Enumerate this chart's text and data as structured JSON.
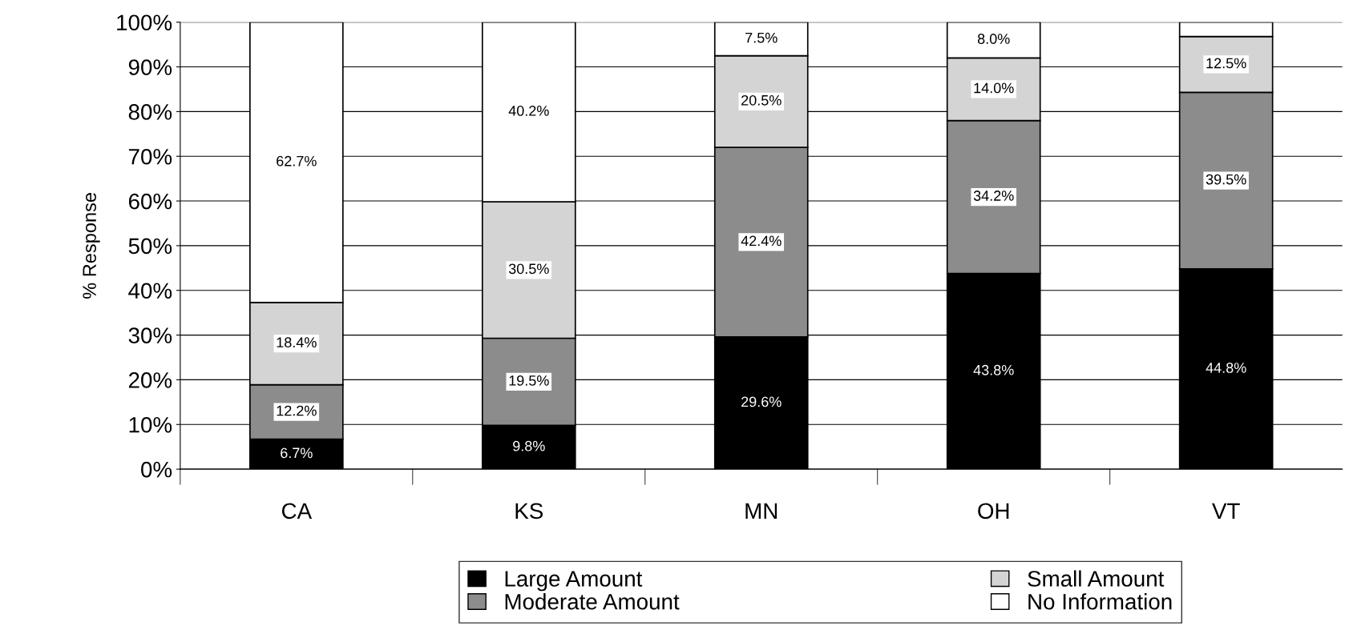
{
  "chart_data": {
    "type": "bar",
    "stacked": true,
    "ylabel": "% Response",
    "categories": [
      "CA",
      "KS",
      "MN",
      "OH",
      "VT"
    ],
    "series": [
      {
        "name": "Large Amount",
        "color": "#000000",
        "values": [
          6.7,
          9.8,
          29.6,
          43.8,
          44.8
        ],
        "value_labels": [
          "6.7%",
          "9.8%",
          "29.6%",
          "43.8%",
          "44.8%"
        ]
      },
      {
        "name": "Moderate Amount",
        "color": "#8c8c8c",
        "values": [
          12.2,
          19.5,
          42.4,
          34.2,
          39.5
        ],
        "value_labels": [
          "12.2%",
          "19.5%",
          "42.4%",
          "34.2%",
          "39.5%"
        ]
      },
      {
        "name": "Small Amount",
        "color": "#d4d4d4",
        "values": [
          18.4,
          30.5,
          20.5,
          14.0,
          12.5
        ],
        "value_labels": [
          "18.4%",
          "30.5%",
          "20.5%",
          "14.0%",
          "12.5%"
        ]
      },
      {
        "name": "No Information",
        "color": "#ffffff",
        "values": [
          62.7,
          40.2,
          7.5,
          8.0,
          3.2
        ],
        "value_labels": [
          "62.7%",
          "40.2%",
          "7.5%",
          "8.0%",
          null
        ]
      }
    ],
    "ylim": [
      0,
      100
    ],
    "yticks": [
      {
        "value": 0,
        "label": "0%"
      },
      {
        "value": 10,
        "label": "10%"
      },
      {
        "value": 20,
        "label": "20%"
      },
      {
        "value": 30,
        "label": "30%"
      },
      {
        "value": 40,
        "label": "40%"
      },
      {
        "value": 50,
        "label": "50%"
      },
      {
        "value": 60,
        "label": "60%"
      },
      {
        "value": 70,
        "label": "70%"
      },
      {
        "value": 80,
        "label": "80%"
      },
      {
        "value": 90,
        "label": "90%"
      },
      {
        "value": 100,
        "label": "100%"
      }
    ],
    "grid": "y",
    "legend": "bottom"
  }
}
